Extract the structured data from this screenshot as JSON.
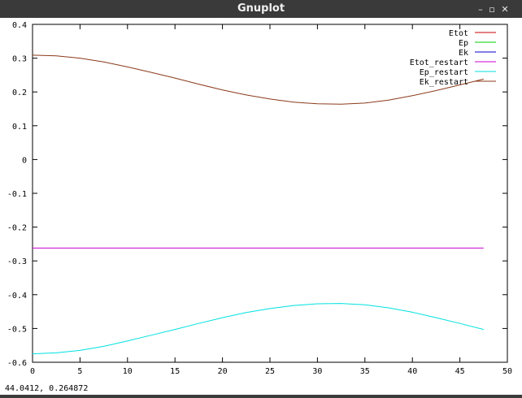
{
  "window": {
    "title": "Gnuplot",
    "minimize_icon": "minimize-icon",
    "maximize_icon": "maximize-icon",
    "close_icon": "close-icon"
  },
  "status": {
    "coordinates": "44.0412,  0.264872"
  },
  "chart_data": {
    "type": "line",
    "title": "",
    "xlabel": "",
    "ylabel": "",
    "xlim": [
      0,
      50
    ],
    "ylim": [
      -0.6,
      0.4
    ],
    "x_ticks": [
      "0",
      "5",
      "10",
      "15",
      "20",
      "25",
      "30",
      "35",
      "40",
      "45",
      "50"
    ],
    "y_ticks": [
      "0.4",
      "0.3",
      "0.2",
      "0.1",
      "0",
      "-0.1",
      "-0.2",
      "-0.3",
      "-0.4",
      "-0.5",
      "-0.6"
    ],
    "grid": false,
    "legend_position": "top-right",
    "series": [
      {
        "name": "Etot",
        "color": "#cc0000",
        "x": [],
        "y": []
      },
      {
        "name": "Ep",
        "color": "#00cc00",
        "x": [],
        "y": []
      },
      {
        "name": "Ek",
        "color": "#0000cc",
        "x": [],
        "y": []
      },
      {
        "name": "Etot_restart",
        "color": "#cc00cc",
        "x": [
          0,
          47.5
        ],
        "y": [
          -0.262,
          -0.262
        ]
      },
      {
        "name": "Ep_restart",
        "color": "#00e0e0",
        "x": [
          0,
          2.5,
          5,
          7.5,
          10,
          12.5,
          15,
          17.5,
          20,
          22.5,
          25,
          27.5,
          30,
          32.5,
          35,
          37.5,
          40,
          42.5,
          45,
          47.5
        ],
        "y": [
          -0.575,
          -0.572,
          -0.565,
          -0.553,
          -0.537,
          -0.52,
          -0.503,
          -0.485,
          -0.468,
          -0.453,
          -0.441,
          -0.432,
          -0.427,
          -0.426,
          -0.43,
          -0.439,
          -0.452,
          -0.468,
          -0.485,
          -0.503
        ]
      },
      {
        "name": "Ek_restart",
        "color": "#8b3a1a",
        "x": [
          0,
          2.5,
          5,
          7.5,
          10,
          12.5,
          15,
          17.5,
          20,
          22.5,
          25,
          27.5,
          30,
          32.5,
          35,
          37.5,
          40,
          42.5,
          45,
          47.5
        ],
        "y": [
          0.309,
          0.307,
          0.3,
          0.289,
          0.274,
          0.258,
          0.241,
          0.223,
          0.206,
          0.191,
          0.179,
          0.17,
          0.165,
          0.164,
          0.167,
          0.176,
          0.189,
          0.204,
          0.221,
          0.238
        ]
      }
    ]
  }
}
